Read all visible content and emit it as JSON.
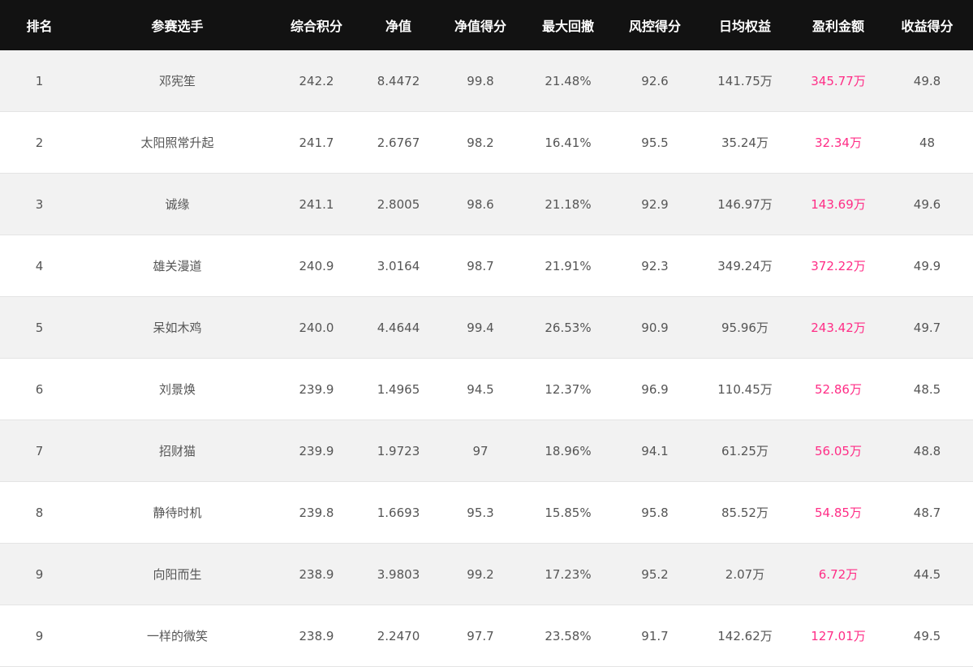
{
  "headers": [
    "排名",
    "参赛选手",
    "综合积分",
    "净值",
    "净值得分",
    "最大回撤",
    "风控得分",
    "日均权益",
    "盈利金额",
    "收益得分"
  ],
  "accent_color": "#ff2d86",
  "rows": [
    [
      "1",
      "邓宪笙",
      "242.2",
      "8.4472",
      "99.8",
      "21.48%",
      "92.6",
      "141.75万",
      "345.77万",
      "49.8"
    ],
    [
      "2",
      "太阳照常升起",
      "241.7",
      "2.6767",
      "98.2",
      "16.41%",
      "95.5",
      "35.24万",
      "32.34万",
      "48"
    ],
    [
      "3",
      "诚缘",
      "241.1",
      "2.8005",
      "98.6",
      "21.18%",
      "92.9",
      "146.97万",
      "143.69万",
      "49.6"
    ],
    [
      "4",
      "雄关漫道",
      "240.9",
      "3.0164",
      "98.7",
      "21.91%",
      "92.3",
      "349.24万",
      "372.22万",
      "49.9"
    ],
    [
      "5",
      "呆如木鸡",
      "240.0",
      "4.4644",
      "99.4",
      "26.53%",
      "90.9",
      "95.96万",
      "243.42万",
      "49.7"
    ],
    [
      "6",
      "刘景焕",
      "239.9",
      "1.4965",
      "94.5",
      "12.37%",
      "96.9",
      "110.45万",
      "52.86万",
      "48.5"
    ],
    [
      "7",
      "招财猫",
      "239.9",
      "1.9723",
      "97",
      "18.96%",
      "94.1",
      "61.25万",
      "56.05万",
      "48.8"
    ],
    [
      "8",
      "静待时机",
      "239.8",
      "1.6693",
      "95.3",
      "15.85%",
      "95.8",
      "85.52万",
      "54.85万",
      "48.7"
    ],
    [
      "9",
      "向阳而生",
      "238.9",
      "3.9803",
      "99.2",
      "17.23%",
      "95.2",
      "2.07万",
      "6.72万",
      "44.5"
    ],
    [
      "9",
      "一样的微笑",
      "238.9",
      "2.2470",
      "97.7",
      "23.58%",
      "91.7",
      "142.62万",
      "127.01万",
      "49.5"
    ]
  ]
}
